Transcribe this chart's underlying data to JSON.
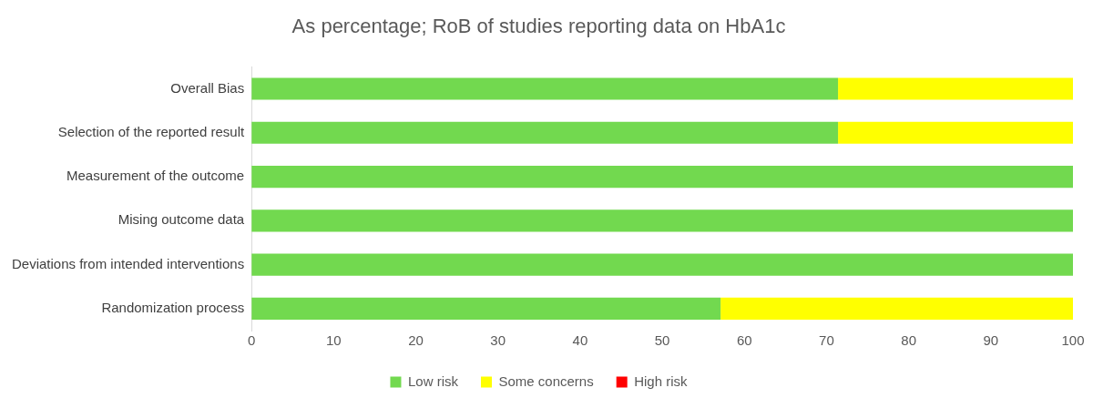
{
  "chart_data": {
    "type": "bar",
    "orientation": "horizontal",
    "stacked": true,
    "title": "As percentage; RoB of studies reporting data on HbA1c",
    "categories": [
      "Overall Bias",
      "Selection of the reported result",
      "Measurement of the outcome",
      "Mising outcome data",
      "Deviations from intended interventions",
      "Randomization process"
    ],
    "series": [
      {
        "name": "Low risk",
        "color": "#72d94f",
        "values": [
          71.4,
          71.4,
          100,
          100,
          100,
          57.1
        ]
      },
      {
        "name": "Some concerns",
        "color": "#ffff00",
        "values": [
          28.6,
          28.6,
          0,
          0,
          0,
          42.9
        ]
      },
      {
        "name": "High risk",
        "color": "#ff0000",
        "values": [
          0,
          0,
          0,
          0,
          0,
          0
        ]
      }
    ],
    "xlim": [
      0,
      100
    ],
    "xticks": [
      0,
      10,
      20,
      30,
      40,
      50,
      60,
      70,
      80,
      90,
      100
    ],
    "grid": false,
    "legend": "bottom"
  }
}
